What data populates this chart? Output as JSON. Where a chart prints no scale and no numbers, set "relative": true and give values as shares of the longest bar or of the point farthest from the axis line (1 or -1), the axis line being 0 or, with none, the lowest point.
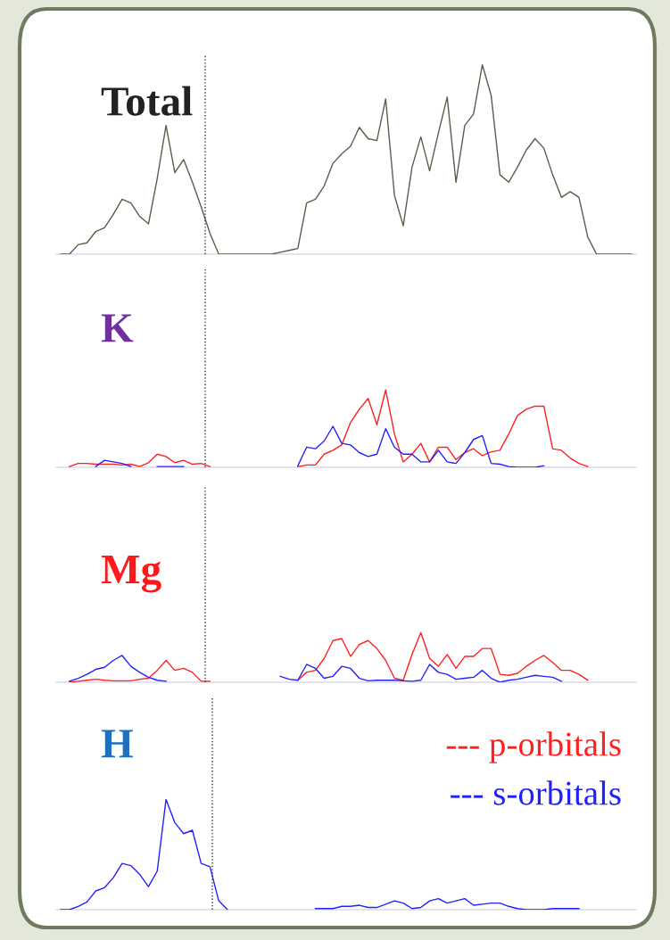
{
  "chart_data": [
    {
      "type": "line",
      "title": "Total",
      "relative": true,
      "categories": [
        null,
        null,
        null,
        null,
        null,
        null,
        null,
        null,
        null,
        null,
        null,
        null,
        null,
        null,
        null,
        null,
        null,
        null,
        null,
        null,
        null,
        null,
        null,
        null,
        null,
        null,
        null,
        null,
        null,
        null,
        null,
        null,
        null,
        null,
        null,
        null,
        null,
        null,
        null,
        null,
        null,
        null,
        null,
        null,
        null,
        null,
        null,
        null,
        null,
        null,
        null,
        null,
        null,
        null,
        null,
        null,
        null,
        null,
        null,
        null,
        null,
        null,
        null,
        null,
        null,
        null
      ],
      "series": [
        {
          "color": "#5a5e48",
          "values": [
            0,
            0,
            0.05,
            0.06,
            0.12,
            0.14,
            0.21,
            0.29,
            0.27,
            0.2,
            0.16,
            0.4,
            0.68,
            0.43,
            0.5,
            0.38,
            0.25,
            0.11,
            0,
            0,
            0,
            0,
            0,
            0,
            0,
            0.01,
            0.02,
            0.03,
            0.27,
            0.29,
            0.36,
            0.48,
            0.53,
            0.57,
            0.67,
            0.61,
            0.6,
            0.82,
            0.31,
            0.15,
            0.46,
            0.62,
            0.44,
            0.64,
            0.83,
            0.38,
            0.68,
            0.74,
            1.0,
            0.84,
            0.42,
            0.38,
            0.46,
            0.55,
            0.61,
            0.56,
            0.42,
            0.3,
            0.33,
            0.3,
            0.09,
            0,
            0,
            0,
            0,
            0
          ]
        }
      ]
    },
    {
      "type": "line",
      "title": "K",
      "relative": true,
      "categories": [
        null,
        null,
        null,
        null,
        null,
        null,
        null,
        null,
        null,
        null,
        null,
        null,
        null,
        null,
        null,
        null,
        null,
        null,
        null,
        null,
        null,
        null,
        null,
        null,
        null,
        null,
        null,
        null,
        null,
        null,
        null,
        null,
        null,
        null,
        null,
        null,
        null,
        null,
        null,
        null,
        null,
        null,
        null,
        null,
        null,
        null,
        null,
        null,
        null,
        null,
        null,
        null,
        null,
        null,
        null,
        null,
        null,
        null,
        null,
        null,
        null,
        null,
        null,
        null,
        null,
        null
      ],
      "series": [
        {
          "color": "#ff2020",
          "values": [
            null,
            0.01,
            0.05,
            0.05,
            0.04,
            0.04,
            0.04,
            0.03,
            0.04,
            0.01,
            0.06,
            0.17,
            0.14,
            0.06,
            0.09,
            0.04,
            0.05,
            0.01,
            null,
            null,
            null,
            null,
            null,
            null,
            null,
            null,
            null,
            0.01,
            0.03,
            0.03,
            0.17,
            0.22,
            0.29,
            0.58,
            0.75,
            0.89,
            0.55,
            1.0,
            0.43,
            0.07,
            0.17,
            0.31,
            0.07,
            0.26,
            0.26,
            0.1,
            0.19,
            0.24,
            0.15,
            0.2,
            0.22,
            0.43,
            0.67,
            0.75,
            0.79,
            0.79,
            0.24,
            0.22,
            0.12,
            0.05,
            0.01,
            null,
            null,
            null,
            null,
            null
          ]
        },
        {
          "color": "#2020ff",
          "values": [
            null,
            null,
            null,
            null,
            0.01,
            0.09,
            0.07,
            0.05,
            0.01,
            null,
            null,
            0.01,
            0.01,
            0.01,
            0.01,
            null,
            null,
            null,
            null,
            null,
            null,
            null,
            null,
            null,
            null,
            null,
            null,
            0.02,
            0.26,
            0.24,
            0.34,
            0.53,
            0.31,
            0.29,
            0.19,
            0.14,
            0.17,
            0.5,
            0.26,
            0.17,
            0.17,
            0.07,
            0.07,
            0.22,
            0.07,
            0.05,
            0.19,
            0.36,
            0.41,
            0.05,
            0.04,
            0.01,
            0,
            0,
            0,
            0.02,
            null,
            null,
            null,
            null,
            null,
            null,
            null,
            null,
            null,
            null
          ]
        }
      ]
    },
    {
      "type": "line",
      "title": "Mg",
      "relative": true,
      "categories": [
        null,
        null,
        null,
        null,
        null,
        null,
        null,
        null,
        null,
        null,
        null,
        null,
        null,
        null,
        null,
        null,
        null,
        null,
        null,
        null,
        null,
        null,
        null,
        null,
        null,
        null,
        null,
        null,
        null,
        null,
        null,
        null,
        null,
        null,
        null,
        null,
        null,
        null,
        null,
        null,
        null,
        null,
        null,
        null,
        null,
        null,
        null,
        null,
        null,
        null,
        null,
        null,
        null,
        null,
        null,
        null,
        null,
        null,
        null,
        null,
        null,
        null,
        null,
        null,
        null,
        null
      ],
      "series": [
        {
          "color": "#ff2020",
          "values": [
            null,
            0,
            0.02,
            0.04,
            0.06,
            0.04,
            0.03,
            0.03,
            0.03,
            0.06,
            0.08,
            0.24,
            0.44,
            0.24,
            0.28,
            0.2,
            0.02,
            0.02,
            null,
            null,
            null,
            null,
            null,
            null,
            null,
            null,
            null,
            0.04,
            0.2,
            0.24,
            0.48,
            0.84,
            0.88,
            0.52,
            0.76,
            0.84,
            0.68,
            0.44,
            0.08,
            0.04,
            0.56,
            1.0,
            0.48,
            0.32,
            0.56,
            0.28,
            0.52,
            0.52,
            0.68,
            0.68,
            0.16,
            0.14,
            0.18,
            0.32,
            0.44,
            0.54,
            0.4,
            0.24,
            0.24,
            0.16,
            0.04,
            null,
            null,
            null,
            null,
            null
          ]
        },
        {
          "color": "#2020ff",
          "values": [
            null,
            0.02,
            0.08,
            0.16,
            0.26,
            0.3,
            0.44,
            0.54,
            0.32,
            0.2,
            0.1,
            0.04,
            0.02,
            null,
            null,
            null,
            null,
            null,
            null,
            null,
            null,
            null,
            null,
            null,
            null,
            0.12,
            0.06,
            0.04,
            0.36,
            0.28,
            0.08,
            0.12,
            0.32,
            0.28,
            0.08,
            0.03,
            0.04,
            0.04,
            0.04,
            0.03,
            0.02,
            0.04,
            0.36,
            0.2,
            0.16,
            0.06,
            0.08,
            0.1,
            0.24,
            0.08,
            0,
            0.04,
            0.06,
            0.1,
            0.14,
            0.12,
            0.1,
            0.02,
            null,
            null,
            null,
            null,
            null,
            null,
            null,
            null
          ]
        }
      ]
    },
    {
      "type": "line",
      "title": "H",
      "relative": true,
      "categories": [
        null,
        null,
        null,
        null,
        null,
        null,
        null,
        null,
        null,
        null,
        null,
        null,
        null,
        null,
        null,
        null,
        null,
        null,
        null,
        null,
        null,
        null,
        null,
        null,
        null,
        null,
        null,
        null,
        null,
        null,
        null,
        null,
        null,
        null,
        null,
        null,
        null,
        null,
        null,
        null,
        null,
        null,
        null,
        null,
        null,
        null,
        null,
        null,
        null,
        null,
        null,
        null,
        null,
        null,
        null,
        null,
        null,
        null,
        null,
        null,
        null,
        null,
        null,
        null,
        null,
        null
      ],
      "series": [
        {
          "color": "#2020ff",
          "values": [
            0,
            0,
            0.03,
            0.07,
            0.17,
            0.2,
            0.29,
            0.42,
            0.4,
            0.32,
            0.21,
            0.35,
            1.0,
            0.79,
            0.69,
            0.72,
            0.42,
            0.39,
            0.08,
            0,
            null,
            null,
            null,
            null,
            null,
            null,
            null,
            null,
            null,
            0.01,
            0.01,
            0.01,
            0.03,
            0.03,
            0.04,
            0.02,
            0.02,
            0.05,
            0.08,
            0.06,
            0.01,
            0.02,
            0.08,
            0.1,
            0.06,
            0.08,
            0.1,
            0.04,
            0.05,
            0.06,
            0.06,
            0.03,
            0.01,
            0,
            0,
            0,
            0.01,
            0.01,
            0.01,
            0.01,
            null,
            null,
            null,
            null,
            null,
            null
          ]
        }
      ],
      "annotations": [
        "--- p-orbitals",
        "--- s-orbitals"
      ]
    }
  ]
}
